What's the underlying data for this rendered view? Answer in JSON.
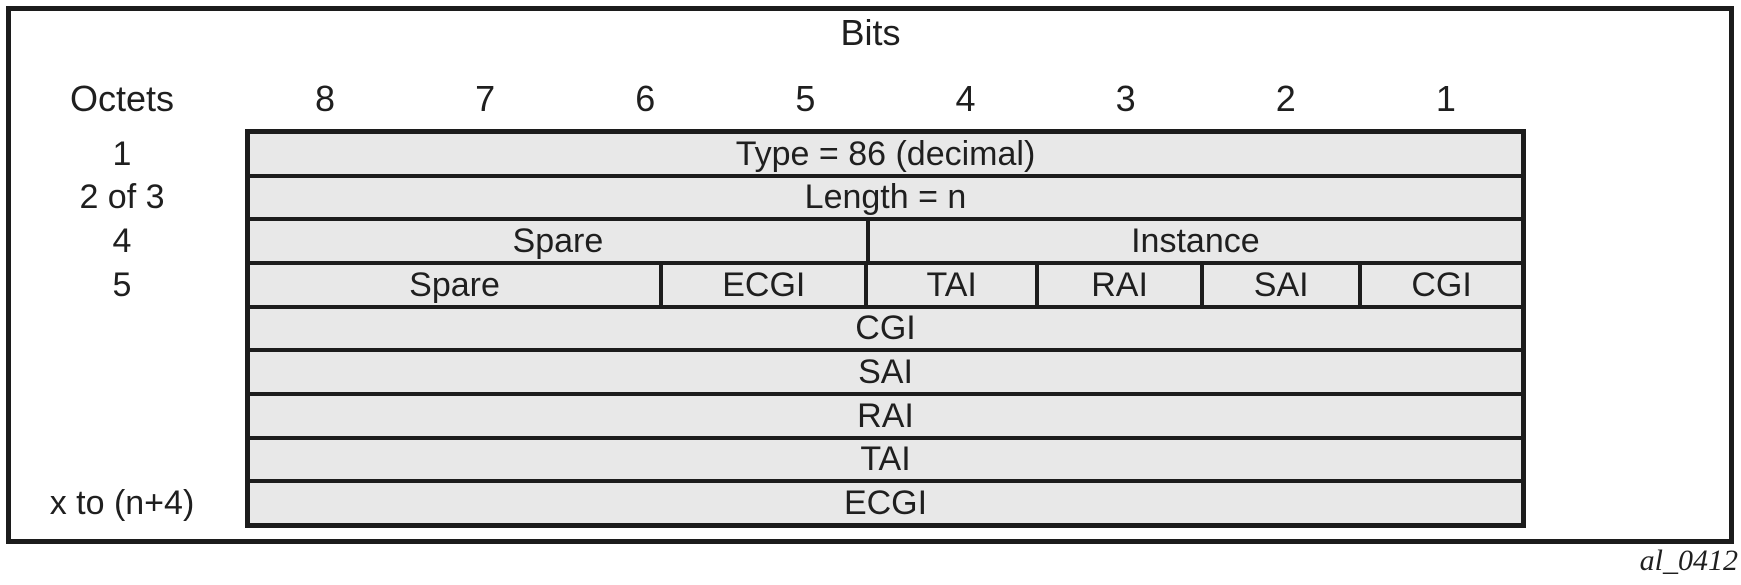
{
  "colors": {
    "line": "#1c1c1c",
    "cell_fill": "#e8e8e8",
    "ink": "#1f1f1f",
    "background": "#ffffff"
  },
  "header": {
    "bits_label": "Bits",
    "octets_label": "Octets",
    "bit_numbers": [
      "8",
      "7",
      "6",
      "5",
      "4",
      "3",
      "2",
      "1"
    ]
  },
  "table": {
    "rows": [
      {
        "octet": "1",
        "cells": [
          {
            "label": "Type = 86 (decimal)"
          }
        ]
      },
      {
        "octet": "2 of 3",
        "cells": [
          {
            "label": "Length = n"
          }
        ]
      },
      {
        "octet": "4",
        "cells": [
          {
            "label": "Spare"
          },
          {
            "label": "Instance"
          }
        ]
      },
      {
        "octet": "5",
        "cells": [
          {
            "label": "Spare"
          },
          {
            "label": "ECGI"
          },
          {
            "label": "TAI"
          },
          {
            "label": "RAI"
          },
          {
            "label": "SAI"
          },
          {
            "label": "CGI"
          }
        ]
      },
      {
        "octet": "",
        "cells": [
          {
            "label": "CGI"
          }
        ]
      },
      {
        "octet": "",
        "cells": [
          {
            "label": "SAI"
          }
        ]
      },
      {
        "octet": "",
        "cells": [
          {
            "label": "RAI"
          }
        ]
      },
      {
        "octet": "",
        "cells": [
          {
            "label": "TAI"
          }
        ]
      },
      {
        "octet": "x to (n+4)",
        "cells": [
          {
            "label": "ECGI"
          }
        ]
      }
    ]
  },
  "caption": "al_0412"
}
